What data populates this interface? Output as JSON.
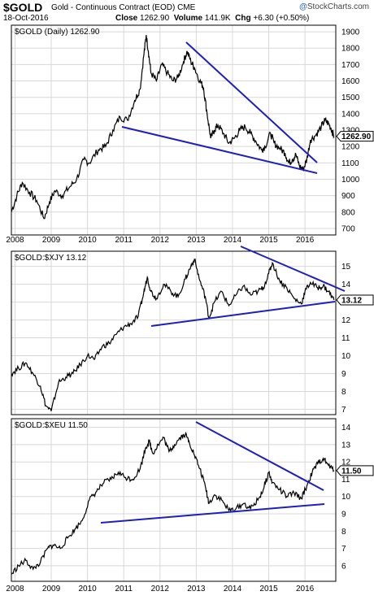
{
  "header": {
    "symbol": "$GOLD",
    "name": "Gold - Continuous Contract (EOD)",
    "exchange": "CME",
    "date": "18-Oct-2016",
    "close_label": "Close",
    "close_value": "1262.90",
    "volume_label": "Volume",
    "volume_value": "141.9K",
    "chg_label": "Chg",
    "chg_value": "+6.30 (+0.50%)",
    "logo": "StockCharts.com"
  },
  "colors": {
    "price": "#000000",
    "trendline": "#1f1fbf",
    "grid": "#d8d8d8",
    "border": "#000000"
  },
  "chart_data": [
    {
      "type": "line",
      "label": "$GOLD (Daily) 1262.90",
      "last_value": "1262.90",
      "x_ticks": [
        "2008",
        "2009",
        "2010",
        "2011",
        "2012",
        "2013",
        "2014",
        "2015",
        "2016"
      ],
      "y_ticks": [
        "700",
        "800",
        "900",
        "1000",
        "1100",
        "1200",
        "1300",
        "1400",
        "1500",
        "1600",
        "1700",
        "1800",
        "1900"
      ],
      "ylim": [
        660,
        1940
      ],
      "xlim": [
        2007.9,
        2016.85
      ],
      "grid": true,
      "x": [
        2007.9,
        2008.05,
        2008.2,
        2008.4,
        2008.6,
        2008.8,
        2008.95,
        2009.1,
        2009.3,
        2009.5,
        2009.7,
        2009.9,
        2010.05,
        2010.3,
        2010.5,
        2010.7,
        2010.9,
        2011.1,
        2011.3,
        2011.45,
        2011.55,
        2011.62,
        2011.68,
        2011.75,
        2011.9,
        2012.05,
        2012.2,
        2012.35,
        2012.5,
        2012.65,
        2012.75,
        2012.85,
        2012.95,
        2013.1,
        2013.2,
        2013.3,
        2013.4,
        2013.5,
        2013.6,
        2013.75,
        2013.9,
        2014.05,
        2014.2,
        2014.35,
        2014.5,
        2014.65,
        2014.8,
        2014.9,
        2015.05,
        2015.15,
        2015.3,
        2015.45,
        2015.55,
        2015.65,
        2015.75,
        2015.85,
        2015.95,
        2016.05,
        2016.15,
        2016.3,
        2016.45,
        2016.55,
        2016.65,
        2016.72,
        2016.8
      ],
      "values": [
        800,
        900,
        980,
        920,
        870,
        760,
        860,
        930,
        900,
        950,
        1000,
        1120,
        1100,
        1180,
        1200,
        1300,
        1380,
        1360,
        1480,
        1550,
        1750,
        1880,
        1780,
        1650,
        1600,
        1700,
        1650,
        1600,
        1620,
        1720,
        1780,
        1720,
        1680,
        1600,
        1560,
        1400,
        1250,
        1300,
        1330,
        1280,
        1220,
        1250,
        1300,
        1320,
        1280,
        1230,
        1180,
        1200,
        1280,
        1220,
        1190,
        1160,
        1100,
        1120,
        1150,
        1080,
        1060,
        1120,
        1240,
        1270,
        1320,
        1360,
        1340,
        1310,
        1262
      ]
    },
    {
      "type": "line",
      "label": "$GOLD:$XJY 13.12",
      "last_value": "13.12",
      "x_ticks": [],
      "y_ticks": [
        "7",
        "8",
        "9",
        "10",
        "11",
        "12",
        "13",
        "14",
        "15"
      ],
      "ylim": [
        6.7,
        15.85
      ],
      "xlim": [
        2007.9,
        2016.85
      ],
      "grid": true,
      "x": [
        2007.9,
        2008.1,
        2008.3,
        2008.5,
        2008.7,
        2008.85,
        2009.0,
        2009.2,
        2009.4,
        2009.6,
        2009.8,
        2010.0,
        2010.2,
        2010.4,
        2010.6,
        2010.8,
        2011.0,
        2011.2,
        2011.4,
        2011.55,
        2011.65,
        2011.75,
        2011.9,
        2012.1,
        2012.3,
        2012.5,
        2012.7,
        2012.85,
        2012.95,
        2013.1,
        2013.25,
        2013.35,
        2013.5,
        2013.7,
        2013.9,
        2014.1,
        2014.3,
        2014.5,
        2014.7,
        2014.85,
        2015.0,
        2015.1,
        2015.3,
        2015.5,
        2015.7,
        2015.9,
        2016.0,
        2016.15,
        2016.35,
        2016.5,
        2016.65,
        2016.8
      ],
      "values": [
        9.0,
        9.3,
        9.6,
        9.0,
        8.3,
        7.2,
        6.9,
        8.5,
        8.8,
        9.0,
        9.5,
        10.0,
        9.8,
        10.5,
        10.7,
        11.2,
        11.6,
        11.8,
        12.2,
        13.5,
        14.4,
        13.6,
        13.2,
        14.0,
        13.6,
        13.3,
        14.3,
        15.0,
        15.4,
        14.2,
        13.3,
        12.1,
        13.0,
        13.6,
        12.8,
        13.4,
        13.9,
        13.4,
        13.6,
        13.8,
        14.6,
        15.2,
        14.2,
        13.8,
        13.2,
        12.9,
        13.6,
        14.1,
        13.8,
        13.9,
        13.6,
        13.12
      ]
    },
    {
      "type": "line",
      "label": "$GOLD:$XEU 11.50",
      "last_value": "11.50",
      "x_ticks": [
        "2008",
        "2009",
        "2010",
        "2011",
        "2012",
        "2013",
        "2014",
        "2015",
        "2016"
      ],
      "y_ticks": [
        "6",
        "7",
        "8",
        "9",
        "10",
        "11",
        "12",
        "13",
        "14"
      ],
      "ylim": [
        5.1,
        14.5
      ],
      "xlim": [
        2007.9,
        2016.85
      ],
      "grid": true,
      "x": [
        2007.9,
        2008.1,
        2008.3,
        2008.5,
        2008.7,
        2008.9,
        2009.05,
        2009.25,
        2009.45,
        2009.65,
        2009.85,
        2010.05,
        2010.25,
        2010.45,
        2010.65,
        2010.85,
        2011.05,
        2011.25,
        2011.45,
        2011.6,
        2011.7,
        2011.8,
        2011.95,
        2012.1,
        2012.25,
        2012.4,
        2012.55,
        2012.7,
        2012.8,
        2012.95,
        2013.1,
        2013.25,
        2013.35,
        2013.5,
        2013.7,
        2013.9,
        2014.1,
        2014.3,
        2014.5,
        2014.7,
        2014.85,
        2015.0,
        2015.1,
        2015.3,
        2015.5,
        2015.7,
        2015.9,
        2016.05,
        2016.2,
        2016.35,
        2016.5,
        2016.65,
        2016.8
      ],
      "values": [
        5.5,
        6.0,
        6.3,
        5.8,
        6.2,
        7.0,
        7.2,
        7.0,
        7.6,
        8.1,
        8.6,
        9.8,
        10.3,
        10.8,
        11.0,
        11.4,
        11.1,
        11.0,
        11.6,
        12.8,
        13.2,
        12.5,
        13.0,
        13.4,
        12.6,
        13.0,
        13.4,
        13.6,
        13.2,
        12.4,
        11.6,
        10.6,
        9.6,
        10.1,
        9.8,
        9.2,
        9.3,
        9.6,
        9.3,
        9.8,
        10.4,
        11.4,
        10.8,
        10.4,
        10.0,
        10.2,
        9.9,
        10.6,
        11.4,
        11.9,
        12.2,
        11.8,
        11.5
      ]
    }
  ]
}
